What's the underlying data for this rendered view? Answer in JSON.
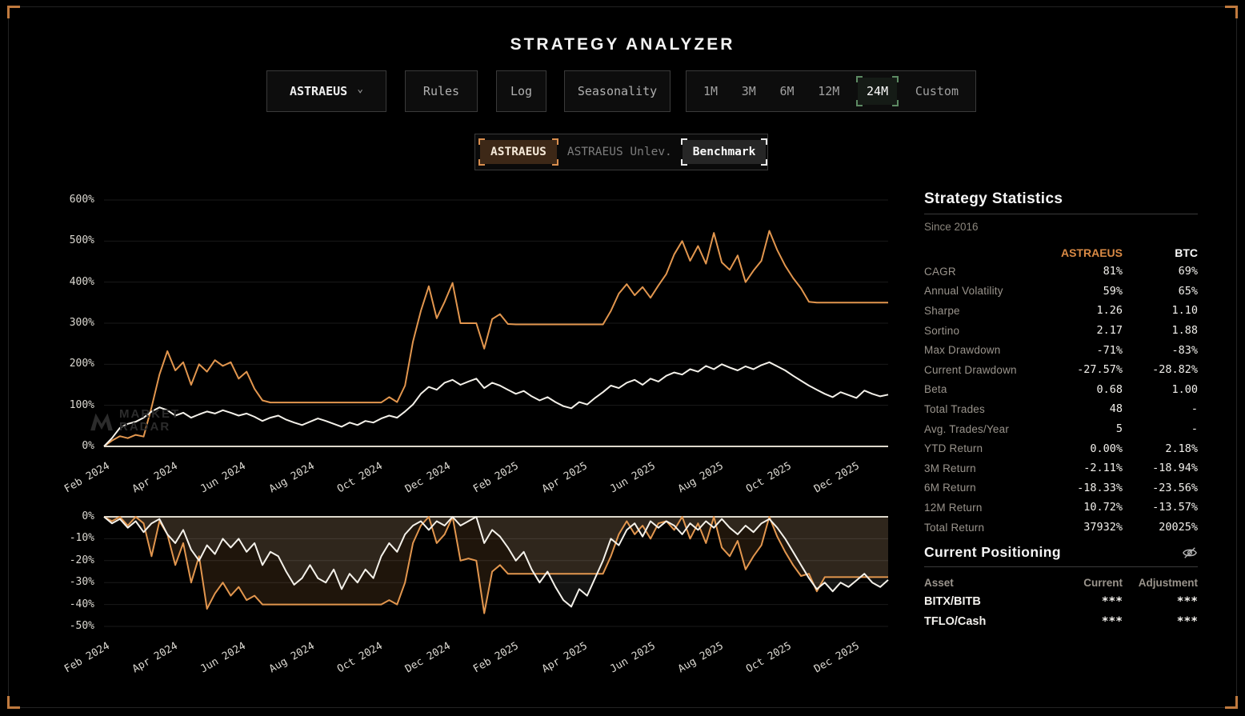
{
  "title": "STRATEGY ANALYZER",
  "controls": {
    "strategy_select": {
      "value": "ASTRAEUS",
      "chevron": "⌄"
    },
    "buttons": [
      "Rules",
      "Log",
      "Seasonality"
    ],
    "timeframes": {
      "options": [
        "1M",
        "3M",
        "6M",
        "12M",
        "24M",
        "Custom"
      ],
      "selected": "24M"
    }
  },
  "legend": {
    "items": [
      {
        "label": "ASTRAEUS",
        "state": "on-orange"
      },
      {
        "label": "ASTRAEUS Unlev.",
        "state": "off"
      },
      {
        "label": "Benchmark",
        "state": "on-white"
      }
    ]
  },
  "watermark": {
    "line1": "MARKET",
    "line2": "RADAR"
  },
  "colors": {
    "accent_orange": "#e2964e",
    "benchmark_white": "#f4f1ea",
    "selected_green": "#5d8a63"
  },
  "chart_data": [
    {
      "type": "line",
      "name": "cumulative-return",
      "ylim": [
        0,
        600
      ],
      "yticks": [
        600,
        500,
        400,
        300,
        200,
        100,
        0
      ],
      "ytick_suffix": "%",
      "baseline": 0,
      "grid": true,
      "x_total_months": 23,
      "x_tick_step": 2,
      "x_tick_labels": [
        "Feb 2024",
        "Apr 2024",
        "Jun 2024",
        "Aug 2024",
        "Oct 2024",
        "Dec 2024",
        "Feb 2025",
        "Apr 2025",
        "Jun 2025",
        "Aug 2025",
        "Oct 2025",
        "Dec 2025"
      ],
      "series": [
        {
          "name": "ASTRAEUS",
          "color": "#e2964e",
          "width": 2,
          "values": [
            0,
            14,
            25,
            20,
            28,
            24,
            95,
            175,
            232,
            185,
            205,
            150,
            200,
            182,
            210,
            196,
            205,
            165,
            182,
            140,
            112,
            107,
            107,
            107,
            107,
            107,
            107,
            107,
            107,
            107,
            107,
            107,
            107,
            107,
            107,
            107,
            120,
            108,
            148,
            255,
            330,
            390,
            312,
            352,
            398,
            300,
            300,
            300,
            238,
            310,
            322,
            298,
            297,
            297,
            297,
            297,
            297,
            297,
            297,
            297,
            297,
            297,
            297,
            297,
            330,
            372,
            395,
            368,
            388,
            362,
            392,
            420,
            468,
            500,
            452,
            488,
            445,
            520,
            448,
            430,
            465,
            400,
            428,
            452,
            525,
            478,
            440,
            410,
            385,
            352,
            350,
            350,
            350,
            350,
            350,
            350,
            350,
            350,
            350,
            350
          ]
        },
        {
          "name": "Benchmark",
          "color": "#f4f1ea",
          "width": 2,
          "values": [
            0,
            20,
            45,
            55,
            60,
            70,
            85,
            95,
            88,
            75,
            82,
            70,
            78,
            85,
            80,
            88,
            82,
            75,
            80,
            72,
            62,
            70,
            75,
            65,
            58,
            52,
            60,
            68,
            62,
            55,
            48,
            58,
            52,
            62,
            58,
            68,
            75,
            70,
            85,
            102,
            128,
            145,
            138,
            155,
            162,
            150,
            158,
            165,
            142,
            155,
            148,
            138,
            128,
            135,
            122,
            112,
            120,
            108,
            98,
            93,
            108,
            102,
            118,
            132,
            148,
            142,
            155,
            162,
            150,
            165,
            158,
            172,
            180,
            175,
            188,
            182,
            196,
            188,
            200,
            192,
            185,
            195,
            188,
            198,
            205,
            195,
            185,
            172,
            160,
            148,
            138,
            128,
            120,
            132,
            125,
            118,
            136,
            128,
            122,
            126
          ]
        }
      ]
    },
    {
      "type": "area",
      "name": "drawdown",
      "ylim": [
        -50,
        0
      ],
      "yticks": [
        0,
        -10,
        -20,
        -30,
        -40,
        -50
      ],
      "ytick_suffix": "%",
      "baseline": 0,
      "grid": true,
      "x_total_months": 23,
      "x_tick_step": 2,
      "x_tick_labels": [
        "Feb 2024",
        "Apr 2024",
        "Jun 2024",
        "Aug 2024",
        "Oct 2024",
        "Dec 2024",
        "Feb 2025",
        "Apr 2025",
        "Jun 2025",
        "Aug 2025",
        "Oct 2025",
        "Dec 2025"
      ],
      "series": [
        {
          "name": "ASTRAEUS",
          "color": "#e2964e",
          "width": 2,
          "fill": "rgba(222,148,76,0.14)",
          "values": [
            0,
            -2,
            0,
            -4,
            0,
            -3,
            -18,
            -2,
            -8,
            -22,
            -12,
            -30,
            -18,
            -42,
            -35,
            -30,
            -36,
            -32,
            -38,
            -36,
            -40,
            -40,
            -40,
            -40,
            -40,
            -40,
            -40,
            -40,
            -40,
            -40,
            -40,
            -40,
            -40,
            -40,
            -40,
            -40,
            -38,
            -40,
            -30,
            -12,
            -4,
            0,
            -12,
            -8,
            0,
            -20,
            -19,
            -20,
            -44,
            -25,
            -22,
            -26,
            -26,
            -26,
            -26,
            -26,
            -26,
            -26,
            -26,
            -26,
            -26,
            -26,
            -26,
            -26,
            -18,
            -8,
            -2,
            -8,
            -4,
            -10,
            -3,
            -2,
            -6,
            0,
            -10,
            -3,
            -12,
            0,
            -14,
            -18,
            -11,
            -24,
            -18,
            -13,
            0,
            -9,
            -16,
            -22,
            -27,
            -26,
            -34,
            -27.5,
            -27.5,
            -27.5,
            -27.5,
            -27.5,
            -27.5,
            -27.5,
            -27.5,
            -27.5
          ]
        },
        {
          "name": "Benchmark",
          "color": "#f4f1ea",
          "width": 2,
          "fill": "rgba(245,240,228,0.08)",
          "values": [
            0,
            -3,
            -1,
            -5,
            -2,
            -7,
            -3,
            -1,
            -8,
            -12,
            -6,
            -15,
            -20,
            -13,
            -17,
            -10,
            -14,
            -10,
            -16,
            -12,
            -22,
            -16,
            -18,
            -25,
            -31,
            -28,
            -22,
            -28,
            -30,
            -24,
            -33,
            -26,
            -30,
            -24,
            -28,
            -18,
            -12,
            -16,
            -8,
            -4,
            -2,
            -6,
            -2,
            -4,
            0,
            -4,
            -2,
            0,
            -12,
            -6,
            -9,
            -14,
            -20,
            -16,
            -24,
            -30,
            -25,
            -32,
            -38,
            -41,
            -33,
            -36,
            -28,
            -20,
            -10,
            -13,
            -6,
            -3,
            -9,
            -2,
            -5,
            -2,
            -4,
            -8,
            -3,
            -6,
            -2,
            -5,
            -1,
            -5,
            -8,
            -4,
            -7,
            -3,
            -1,
            -5,
            -10,
            -16,
            -22,
            -28,
            -33,
            -30,
            -34,
            -30,
            -32,
            -29,
            -26,
            -30,
            -32,
            -28.8
          ]
        }
      ]
    }
  ],
  "stats": {
    "title": "Strategy Statistics",
    "subtitle": "Since 2016",
    "col_headers": {
      "a": "ASTRAEUS",
      "b": "BTC"
    },
    "rows": [
      {
        "label": "CAGR",
        "astraeus": "81%",
        "btc": "69%"
      },
      {
        "label": "Annual Volatility",
        "astraeus": "59%",
        "btc": "65%"
      },
      {
        "label": "Sharpe",
        "astraeus": "1.26",
        "btc": "1.10"
      },
      {
        "label": "Sortino",
        "astraeus": "2.17",
        "btc": "1.88"
      },
      {
        "label": "Max Drawdown",
        "astraeus": "-71%",
        "btc": "-83%"
      },
      {
        "label": "Current Drawdown",
        "astraeus": "-27.57%",
        "btc": "-28.82%"
      },
      {
        "label": "Beta",
        "astraeus": "0.68",
        "btc": "1.00"
      },
      {
        "label": "Total Trades",
        "astraeus": "48",
        "btc": "-"
      },
      {
        "label": "Avg. Trades/Year",
        "astraeus": "5",
        "btc": "-"
      },
      {
        "label": "YTD Return",
        "astraeus": "0.00%",
        "btc": "2.18%"
      },
      {
        "label": "3M Return",
        "astraeus": "-2.11%",
        "btc": "-18.94%"
      },
      {
        "label": "6M Return",
        "astraeus": "-18.33%",
        "btc": "-23.56%"
      },
      {
        "label": "12M Return",
        "astraeus": "10.72%",
        "btc": "-13.57%"
      },
      {
        "label": "Total Return",
        "astraeus": "37932%",
        "btc": "20025%"
      }
    ]
  },
  "positioning": {
    "title": "Current Positioning",
    "headers": {
      "asset": "Asset",
      "current": "Current",
      "adjustment": "Adjustment"
    },
    "rows": [
      {
        "asset": "BITX/BITB",
        "current": "***",
        "adjustment": "***"
      },
      {
        "asset": "TFLO/Cash",
        "current": "***",
        "adjustment": "***"
      }
    ]
  }
}
